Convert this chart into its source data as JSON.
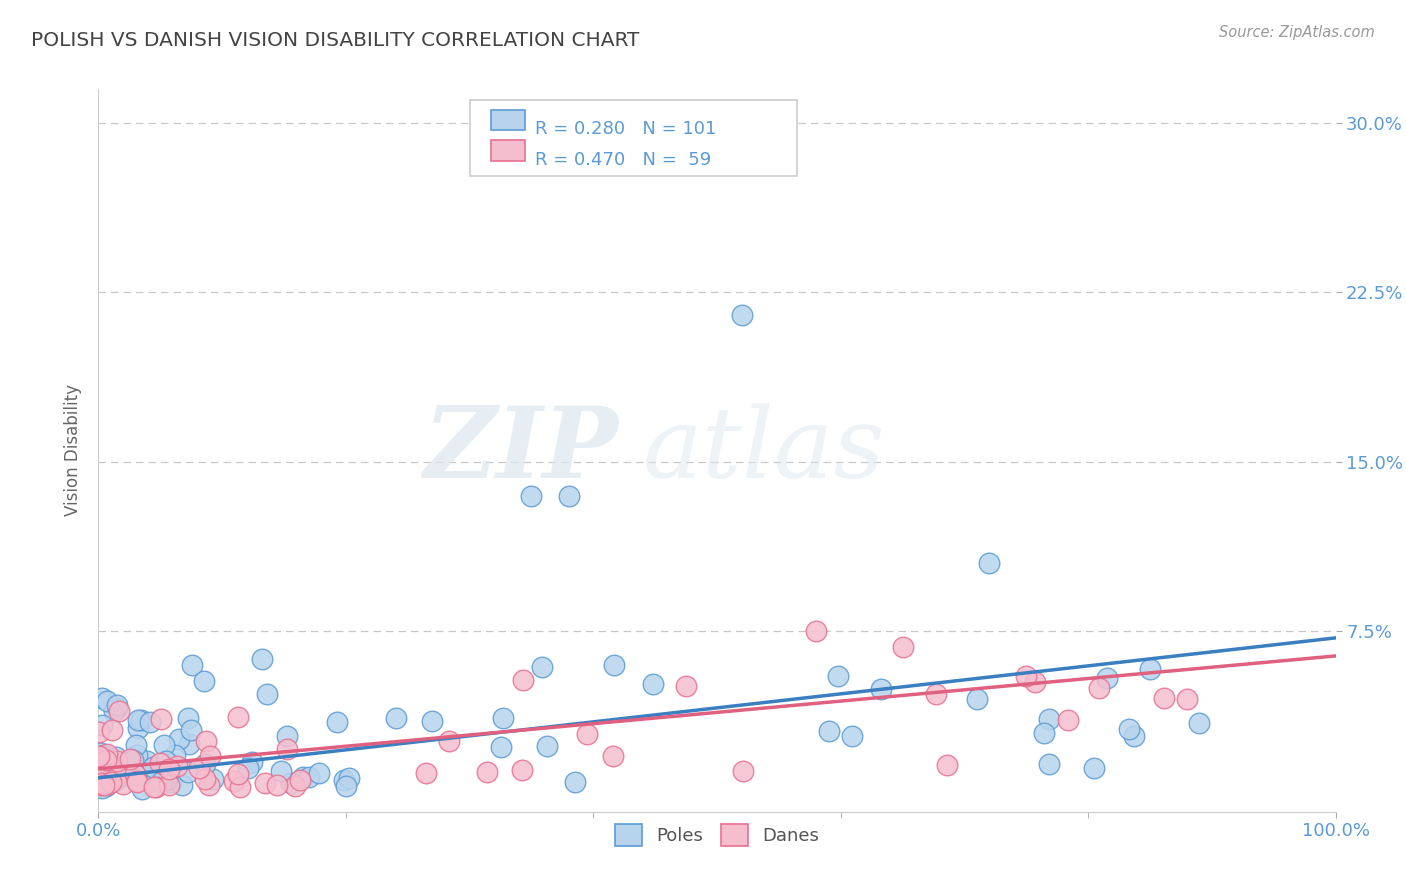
{
  "title": "POLISH VS DANISH VISION DISABILITY CORRELATION CHART",
  "source": "Source: ZipAtlas.com",
  "ylabel": "Vision Disability",
  "xlim": [
    0.0,
    1.0
  ],
  "ylim": [
    -0.005,
    0.315
  ],
  "xtick_labels": [
    "0.0%",
    "100.0%"
  ],
  "ytick_labels": [
    "7.5%",
    "15.0%",
    "22.5%",
    "30.0%"
  ],
  "ytick_values": [
    0.075,
    0.15,
    0.225,
    0.3
  ],
  "grid_color": "#c8c8c8",
  "background_color": "#ffffff",
  "poles_fill_color": "#b8d4ed",
  "danes_fill_color": "#f5bece",
  "poles_edge_color": "#5b9bd5",
  "danes_edge_color": "#e87090",
  "poles_line_color": "#3a7fc1",
  "danes_line_color": "#e06080",
  "poles_R": 0.28,
  "poles_N": 101,
  "danes_R": 0.47,
  "danes_N": 59,
  "legend_label_poles": "Poles",
  "legend_label_danes": "Danes",
  "watermark_zip": "ZIP",
  "watermark_atlas": "atlas",
  "title_color": "#444444",
  "axis_label_color": "#5b9bd5",
  "tick_color": "#5b9bd5"
}
